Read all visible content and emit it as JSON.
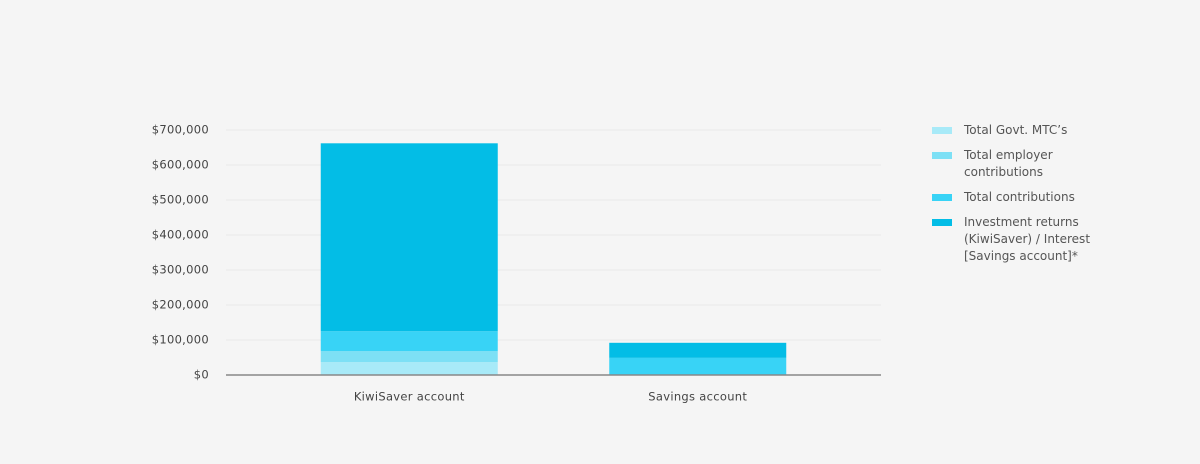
{
  "chart_data": {
    "type": "stacked_bar",
    "categories": [
      "KiwiSaver account",
      "Savings account"
    ],
    "series": [
      {
        "name": "Total Govt. MTC’s",
        "color": "#a8eaf8",
        "values": [
          37000,
          0
        ]
      },
      {
        "name": "Total employer contributions",
        "color": "#7de0f5",
        "values": [
          31000,
          0
        ]
      },
      {
        "name": "Total contributions",
        "color": "#38d3f6",
        "values": [
          57000,
          49000
        ]
      },
      {
        "name": "Investment returns (KiwiSaver) / Interest [Savings account]*",
        "color": "#03bde6",
        "values": [
          537000,
          43000
        ]
      }
    ],
    "ylim": [
      0,
      700000
    ],
    "yticks": [
      {
        "value": 0,
        "label": "$0"
      },
      {
        "value": 100000,
        "label": "$100,000"
      },
      {
        "value": 200000,
        "label": "$200,000"
      },
      {
        "value": 300000,
        "label": "$300,000"
      },
      {
        "value": 400000,
        "label": "$400,000"
      },
      {
        "value": 500000,
        "label": "$500,000"
      },
      {
        "value": 600000,
        "label": "$600,000"
      },
      {
        "value": 700000,
        "label": "$700,000"
      }
    ],
    "grid": true,
    "legend": "right"
  }
}
